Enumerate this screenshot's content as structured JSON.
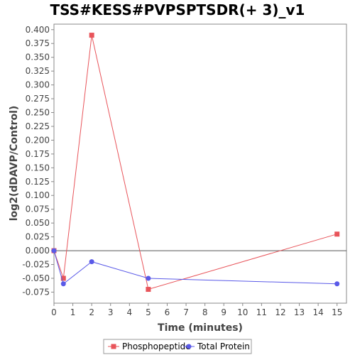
{
  "chart_data": {
    "type": "line",
    "title": "TSS#KESS#PVPSPTSDR(+ 3)_v1",
    "xlabel": "Time (minutes)",
    "ylabel": "log2(dDAVP/Control)",
    "xlim": [
      0,
      15.5
    ],
    "ylim": [
      -0.095,
      0.41
    ],
    "xticks": [
      0,
      1,
      2,
      3,
      4,
      5,
      6,
      7,
      8,
      9,
      10,
      11,
      12,
      13,
      14,
      15
    ],
    "yticks": [
      0.4,
      0.375,
      0.35,
      0.325,
      0.3,
      0.275,
      0.25,
      0.225,
      0.2,
      0.175,
      0.15,
      0.125,
      0.1,
      0.075,
      0.05,
      0.025,
      0.0,
      -0.025,
      -0.05,
      -0.075
    ],
    "ytick_labels": [
      "0.400",
      "0.375",
      "0.350",
      "0.325",
      "0.300",
      "0.275",
      "0.250",
      "0.225",
      "0.200",
      "0.175",
      "0.150",
      "0.125",
      "0.100",
      "0.075",
      "0.050",
      "0.025",
      "0.000",
      "-0.025",
      "-0.050",
      "-0.075"
    ],
    "zero_line": true,
    "grid": false,
    "legend_position": "bottom",
    "series": [
      {
        "name": "Phosphopeptide",
        "color": "#e8545a",
        "marker": "square",
        "x": [
          0,
          0.5,
          2,
          5,
          15
        ],
        "y": [
          0.0,
          -0.05,
          0.39,
          -0.07,
          0.03
        ]
      },
      {
        "name": "Total Protein",
        "color": "#5a5ae8",
        "marker": "circle",
        "x": [
          0,
          0.5,
          2,
          5,
          15
        ],
        "y": [
          0.0,
          -0.06,
          -0.02,
          -0.05,
          -0.06
        ]
      }
    ]
  }
}
